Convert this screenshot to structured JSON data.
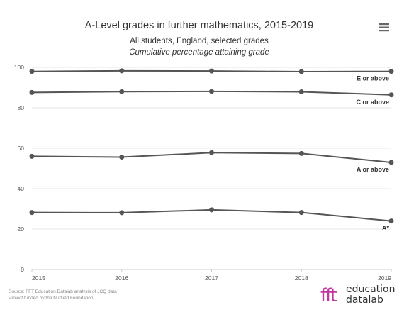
{
  "chart_data": {
    "type": "line",
    "title": "A-Level grades in further mathematics, 2015-2019",
    "subtitle": "All students, England, selected grades",
    "subtitle2": "Cumulative percentage attaining grade",
    "x": [
      "2015",
      "2016",
      "2017",
      "2018",
      "2019"
    ],
    "ylim": [
      0,
      100
    ],
    "yticks": [
      "0",
      "20",
      "40",
      "60",
      "80",
      "100"
    ],
    "grid": true,
    "series": [
      {
        "name": "E or above",
        "values": [
          98.0,
          98.3,
          98.2,
          97.9,
          98.0
        ]
      },
      {
        "name": "C or above",
        "values": [
          87.6,
          88.0,
          88.1,
          87.9,
          86.4
        ]
      },
      {
        "name": "A or above",
        "values": [
          56.0,
          55.6,
          57.8,
          57.4,
          53.0
        ]
      },
      {
        "name": "A*",
        "values": [
          28.2,
          28.1,
          29.5,
          28.2,
          24.0
        ]
      }
    ],
    "line_color": "#555555",
    "grid_color": "#e6e6e6"
  },
  "credits": {
    "line1": "Source: FFT Education Datalab analysis of JCQ data",
    "line2": "Project funded by the Nuffield Foundation"
  },
  "brand": {
    "mark": "fft",
    "line1": "education",
    "line2": "datalab",
    "mark_color": "#c2389e"
  },
  "menu": {
    "icon": "hamburger-menu-icon"
  }
}
